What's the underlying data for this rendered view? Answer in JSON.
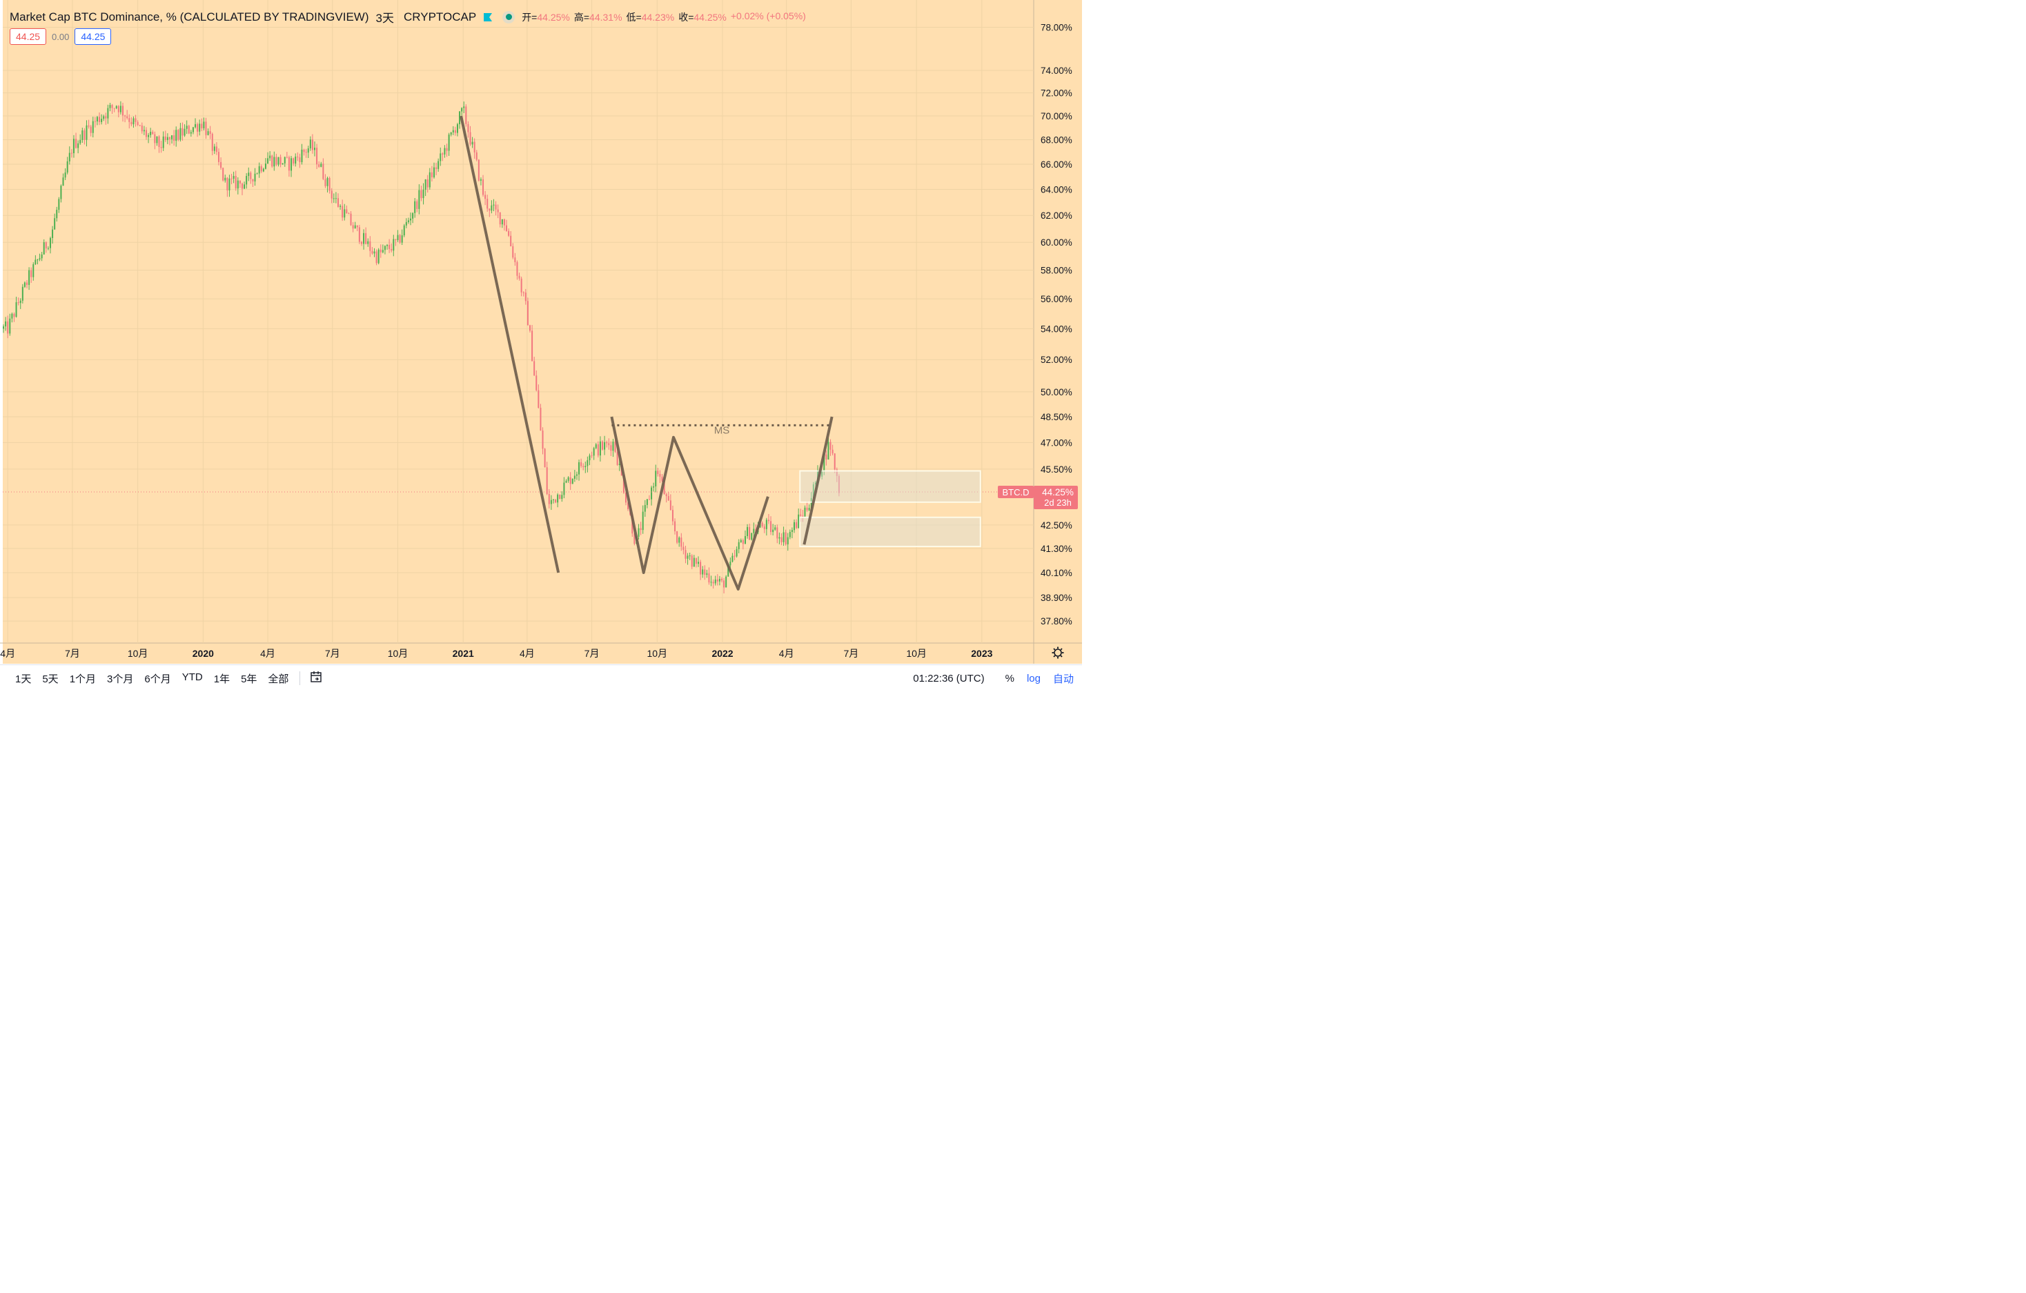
{
  "legend": {
    "symbol": "Market Cap BTC Dominance, % (CALCULATED BY TRADINGVIEW)",
    "timeframe": "3天",
    "exchange": "CRYPTOCAP",
    "open_label": "开=",
    "open": "44.25%",
    "high_label": "高=",
    "high": "44.31%",
    "low_label": "低=",
    "low": "44.23%",
    "close_label": "收=",
    "close": "44.25%",
    "change": "+0.02% (+0.05%)"
  },
  "values_row": {
    "left": "44.25",
    "mid": "0.00",
    "right": "44.25"
  },
  "price_tag": {
    "symbol": "BTC.D",
    "value": "44.25%",
    "countdown": "2d 23h"
  },
  "annotation": {
    "ms": "MS"
  },
  "bottom_bar": {
    "ranges": [
      "1天",
      "5天",
      "1个月",
      "3个月",
      "6个月",
      "YTD",
      "1年",
      "5年",
      "全部"
    ],
    "calendar_icon": "calendar-range-icon",
    "clock": "01:22:36 (UTC)",
    "percent": "%",
    "log": "log",
    "auto": "自动"
  },
  "colors": {
    "background": "#ffdfb0",
    "up": "#4caf50",
    "down": "#f2767f",
    "drawing": "#6b5b4a"
  },
  "chart_data": {
    "type": "candlestick",
    "title": "Market Cap BTC Dominance, % (CALCULATED BY TRADINGVIEW)",
    "scale": "log",
    "y_unit": "%",
    "ylim": [
      36.8,
      80.5
    ],
    "y_ticks": [
      "37.80%",
      "38.90%",
      "40.10%",
      "41.30%",
      "42.50%",
      "45.50%",
      "47.00%",
      "48.50%",
      "50.00%",
      "52.00%",
      "54.00%",
      "56.00%",
      "58.00%",
      "60.00%",
      "62.00%",
      "64.00%",
      "66.00%",
      "68.00%",
      "70.00%",
      "72.00%",
      "74.00%",
      "78.00%"
    ],
    "x_ticks": [
      "4月",
      "7月",
      "10月",
      "2020",
      "4月",
      "7月",
      "10月",
      "2021",
      "4月",
      "7月",
      "10月",
      "2022",
      "4月",
      "7月",
      "10月",
      "2023"
    ],
    "x_range": [
      "2019-03-25",
      "2023-03-15"
    ],
    "series": [
      {
        "name": "BTC.D",
        "points": [
          [
            "2019-04-01",
            54.0
          ],
          [
            "2019-05-01",
            57.5
          ],
          [
            "2019-06-01",
            60.5
          ],
          [
            "2019-07-01",
            67.5
          ],
          [
            "2019-08-01",
            69.5
          ],
          [
            "2019-09-01",
            71.0
          ],
          [
            "2019-10-01",
            69.0
          ],
          [
            "2019-11-01",
            67.5
          ],
          [
            "2019-12-01",
            68.5
          ],
          [
            "2020-01-01",
            69.5
          ],
          [
            "2020-02-01",
            64.5
          ],
          [
            "2020-03-01",
            64.5
          ],
          [
            "2020-04-01",
            66.5
          ],
          [
            "2020-05-01",
            66.0
          ],
          [
            "2020-06-01",
            67.5
          ],
          [
            "2020-07-01",
            63.5
          ],
          [
            "2020-08-01",
            61.0
          ],
          [
            "2020-09-01",
            59.0
          ],
          [
            "2020-10-01",
            60.0
          ],
          [
            "2020-11-01",
            63.5
          ],
          [
            "2020-12-01",
            66.5
          ],
          [
            "2021-01-01",
            70.5
          ],
          [
            "2021-02-01",
            63.0
          ],
          [
            "2021-03-01",
            61.5
          ],
          [
            "2021-04-01",
            55.0
          ],
          [
            "2021-05-01",
            43.5
          ],
          [
            "2021-06-01",
            45.0
          ],
          [
            "2021-07-01",
            46.5
          ],
          [
            "2021-08-01",
            47.0
          ],
          [
            "2021-09-01",
            41.5
          ],
          [
            "2021-10-01",
            45.5
          ],
          [
            "2021-11-01",
            41.5
          ],
          [
            "2021-12-01",
            40.2
          ],
          [
            "2022-01-01",
            39.5
          ],
          [
            "2022-02-01",
            42.0
          ],
          [
            "2022-03-01",
            42.5
          ],
          [
            "2022-04-01",
            41.8
          ],
          [
            "2022-05-01",
            43.5
          ],
          [
            "2022-06-01",
            47.0
          ],
          [
            "2022-06-15",
            44.25
          ]
        ]
      }
    ],
    "drawings": [
      {
        "type": "trendline",
        "points": [
          [
            "2020-12-29",
            70.0
          ],
          [
            "2021-05-15",
            40.1
          ]
        ]
      },
      {
        "type": "zigzag",
        "points": [
          [
            "2021-07-29",
            48.5
          ],
          [
            "2021-09-12",
            40.1
          ],
          [
            "2021-10-24",
            47.3
          ],
          [
            "2022-01-23",
            39.3
          ],
          [
            "2022-03-06",
            44.0
          ]
        ]
      },
      {
        "type": "trendline",
        "points": [
          [
            "2022-04-26",
            41.5
          ],
          [
            "2022-06-04",
            48.5
          ]
        ]
      },
      {
        "type": "dotted-line",
        "label": "MS",
        "value": 48.0,
        "from": "2021-07-29",
        "to": "2022-06-04"
      },
      {
        "type": "rectangle",
        "y": [
          43.7,
          45.4
        ],
        "from": "2022-04-20",
        "to": "2022-12-30"
      },
      {
        "type": "rectangle",
        "y": [
          41.4,
          42.9
        ],
        "from": "2022-04-20",
        "to": "2022-12-30"
      }
    ],
    "last_value": 44.25,
    "grid": true,
    "legend": "top-left"
  }
}
